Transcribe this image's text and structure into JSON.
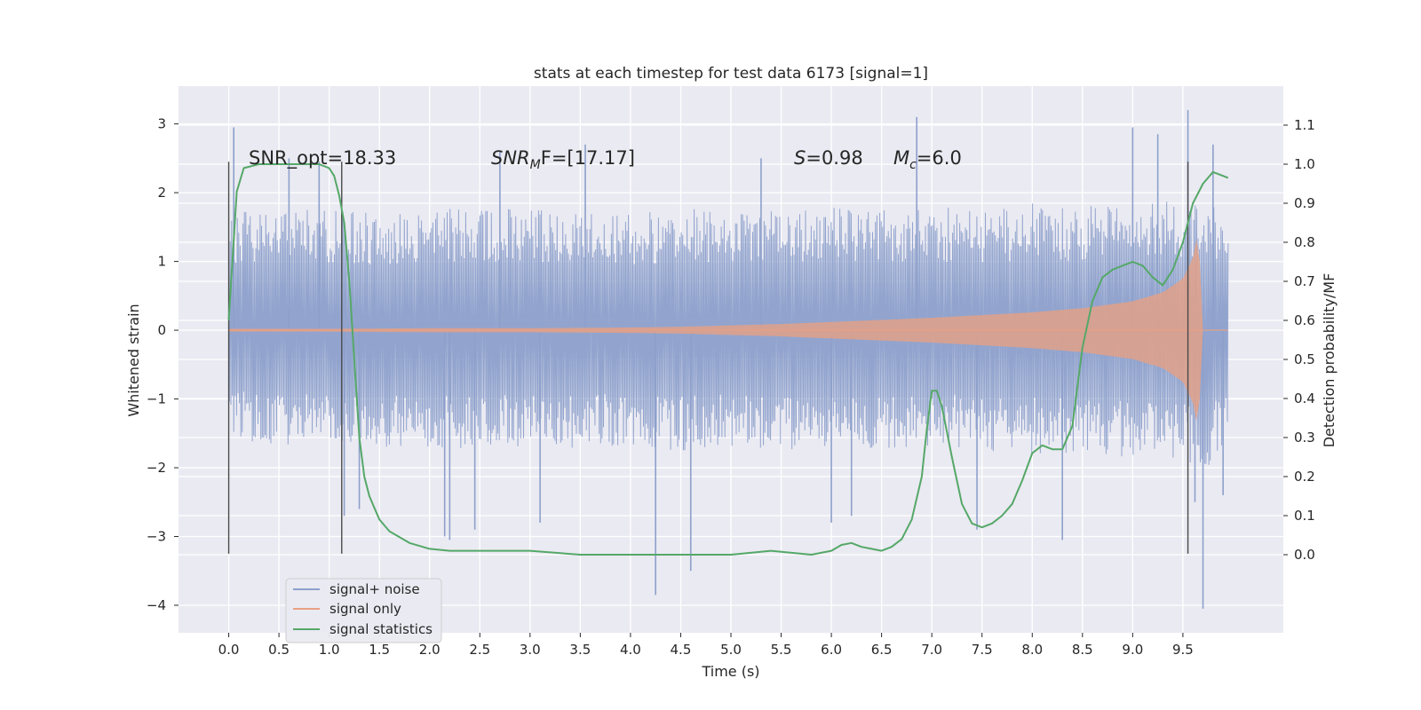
{
  "chart_data": {
    "type": "line",
    "title": "stats at each timestep for test data 6173 [signal=1]",
    "xlabel": "Time (s)",
    "ylabel": "Whitened strain",
    "ylabel_right": "Detection probability/MF",
    "xlim": [
      -0.5,
      10.5
    ],
    "ylim": [
      -4.4,
      3.55
    ],
    "ylim_right": [
      -0.2,
      1.2
    ],
    "grid": true,
    "legend_position": "lower-left",
    "x_ticks": [
      "0.0",
      "0.5",
      "1.0",
      "1.5",
      "2.0",
      "2.5",
      "3.0",
      "3.5",
      "4.0",
      "4.5",
      "5.0",
      "5.5",
      "6.0",
      "6.5",
      "7.0",
      "7.5",
      "8.0",
      "8.5",
      "9.0",
      "9.5"
    ],
    "y_ticks": [
      "3",
      "2",
      "1",
      "0",
      "−1",
      "−2",
      "−3",
      "−4"
    ],
    "y_ticks_right": [
      "1.1",
      "1.0",
      "0.9",
      "0.8",
      "0.7",
      "0.6",
      "0.5",
      "0.4",
      "0.3",
      "0.2",
      "0.1",
      "0.0"
    ],
    "annotations": {
      "snr_opt": "SNR_opt=18.33",
      "snr_mf_base": "SNR",
      "snr_mf_sub": "M",
      "snr_mf_rest": "F=[17.17]",
      "s_label": "S",
      "s_value": "=0.98",
      "mc_base": "M",
      "mc_sub": "c",
      "mc_value": "=6.0"
    },
    "vertical_markers_x": [
      0.0,
      1.125,
      9.55
    ],
    "series": [
      {
        "name": "signal+ noise",
        "color": "#8da0cb",
        "axis": "left",
        "envelope_x": [
          0.0,
          0.5,
          1.0,
          1.5,
          2.0,
          2.5,
          3.0,
          3.5,
          4.0,
          4.5,
          5.0,
          5.5,
          6.0,
          6.5,
          7.0,
          7.5,
          8.0,
          8.5,
          9.0,
          9.5,
          9.75,
          9.95
        ],
        "envelope_upper": [
          1.7,
          1.8,
          1.75,
          1.7,
          1.8,
          1.75,
          1.8,
          1.75,
          1.7,
          1.75,
          1.8,
          1.75,
          1.8,
          1.75,
          1.8,
          1.75,
          1.85,
          1.8,
          1.85,
          1.9,
          2.0,
          1.5
        ],
        "envelope_lower": [
          -1.6,
          -1.7,
          -1.65,
          -1.7,
          -1.75,
          -1.7,
          -1.75,
          -1.7,
          -1.7,
          -1.75,
          -1.7,
          -1.75,
          -1.7,
          -1.75,
          -1.7,
          -1.75,
          -1.8,
          -1.8,
          -1.85,
          -1.9,
          -2.0,
          -1.6
        ],
        "peaks_x": [
          0.05,
          0.6,
          0.9,
          1.15,
          1.3,
          2.15,
          2.2,
          2.45,
          2.7,
          3.1,
          3.55,
          4.25,
          4.6,
          5.3,
          6.0,
          6.2,
          6.85,
          7.45,
          8.3,
          9.0,
          9.25,
          9.55,
          9.62,
          9.7,
          9.8,
          9.9
        ],
        "peaks_y": [
          2.95,
          2.5,
          2.45,
          -2.7,
          -2.6,
          -3.0,
          -3.05,
          -2.9,
          2.6,
          -2.8,
          2.7,
          -3.85,
          -3.5,
          2.5,
          -2.8,
          -2.7,
          3.1,
          -2.9,
          -3.05,
          2.95,
          2.85,
          3.2,
          -2.5,
          -4.05,
          2.7,
          -2.4
        ]
      },
      {
        "name": "signal only",
        "color": "#e8a083",
        "axis": "left",
        "x": [
          0.0,
          1.0,
          2.0,
          3.0,
          4.0,
          4.5,
          5.0,
          5.5,
          6.0,
          6.5,
          7.0,
          7.5,
          8.0,
          8.5,
          9.0,
          9.3,
          9.5,
          9.6,
          9.66,
          9.68,
          9.7
        ],
        "amplitude": [
          0.02,
          0.02,
          0.03,
          0.03,
          0.04,
          0.05,
          0.07,
          0.09,
          0.12,
          0.15,
          0.18,
          0.22,
          0.26,
          0.32,
          0.42,
          0.55,
          0.75,
          1.05,
          1.5,
          0.2,
          0.0
        ]
      },
      {
        "name": "signal statistics",
        "color": "#55a868",
        "axis": "right",
        "x": [
          0.0,
          0.08,
          0.15,
          0.3,
          0.5,
          0.7,
          0.9,
          1.0,
          1.05,
          1.1,
          1.15,
          1.2,
          1.25,
          1.3,
          1.35,
          1.4,
          1.45,
          1.5,
          1.6,
          1.8,
          2.0,
          2.2,
          2.5,
          3.0,
          3.5,
          4.0,
          4.5,
          5.0,
          5.4,
          5.8,
          6.0,
          6.1,
          6.2,
          6.3,
          6.4,
          6.5,
          6.6,
          6.7,
          6.8,
          6.9,
          6.95,
          7.0,
          7.05,
          7.1,
          7.2,
          7.3,
          7.4,
          7.5,
          7.6,
          7.7,
          7.8,
          7.9,
          8.0,
          8.1,
          8.2,
          8.3,
          8.4,
          8.5,
          8.6,
          8.7,
          8.8,
          9.0,
          9.1,
          9.2,
          9.3,
          9.4,
          9.5,
          9.6,
          9.7,
          9.8,
          9.9,
          9.95
        ],
        "values": [
          0.6,
          0.93,
          0.99,
          1.0,
          1.0,
          1.0,
          1.0,
          0.99,
          0.97,
          0.92,
          0.85,
          0.7,
          0.5,
          0.3,
          0.2,
          0.15,
          0.12,
          0.09,
          0.06,
          0.03,
          0.015,
          0.01,
          0.01,
          0.01,
          0.0,
          0.0,
          0.0,
          0.0,
          0.01,
          0.0,
          0.01,
          0.025,
          0.03,
          0.02,
          0.015,
          0.01,
          0.02,
          0.04,
          0.09,
          0.2,
          0.32,
          0.42,
          0.42,
          0.38,
          0.25,
          0.13,
          0.08,
          0.07,
          0.08,
          0.1,
          0.13,
          0.19,
          0.26,
          0.28,
          0.27,
          0.27,
          0.33,
          0.53,
          0.65,
          0.71,
          0.73,
          0.75,
          0.74,
          0.71,
          0.69,
          0.73,
          0.8,
          0.9,
          0.95,
          0.98,
          0.97,
          0.965
        ]
      }
    ]
  }
}
